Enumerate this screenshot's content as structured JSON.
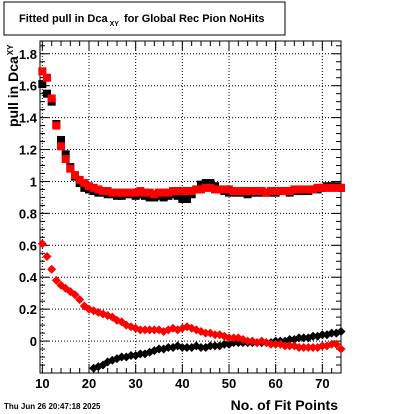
{
  "chart_data": {
    "type": "scatter",
    "title": {
      "main": "Fitted pull in Dca",
      "sub": "XY",
      "rest": "for Global Rec Pion NoHits"
    },
    "xlabel": "No. of Fit Points",
    "ylabel": {
      "main": "pull in Dca",
      "sub": "XY"
    },
    "xlim": [
      9.5,
      74
    ],
    "ylim": [
      -0.2,
      1.88
    ],
    "xticks": [
      10,
      20,
      30,
      40,
      50,
      60,
      70
    ],
    "yticks": [
      0,
      0.2,
      0.4,
      0.6,
      0.8,
      1,
      1.2,
      1.4,
      1.6,
      1.8
    ],
    "ytick_labels": [
      "0",
      "0.2",
      "0.4",
      "0.6",
      "0.8",
      "1",
      "1.2",
      "1.4",
      "1.6",
      "1.8"
    ],
    "grid": true,
    "series": [
      {
        "color": "#000000",
        "marker": "square",
        "x": [
          10,
          11,
          12,
          13,
          14,
          15,
          16,
          17,
          18,
          19,
          20,
          21,
          22,
          23,
          24,
          25,
          26,
          27,
          28,
          29,
          30,
          31,
          32,
          33,
          34,
          35,
          36,
          37,
          38,
          39,
          40,
          41,
          42,
          43,
          44,
          45,
          46,
          47,
          48,
          49,
          50,
          51,
          52,
          53,
          54,
          55,
          56,
          57,
          58,
          59,
          60,
          61,
          62,
          63,
          64,
          65,
          66,
          67,
          68,
          69,
          70,
          71,
          72,
          73,
          74
        ],
        "y": [
          1.61,
          1.55,
          1.5,
          1.36,
          1.26,
          1.17,
          1.09,
          1.03,
          0.99,
          0.96,
          0.95,
          0.94,
          0.93,
          0.93,
          0.92,
          0.92,
          0.91,
          0.91,
          0.92,
          0.92,
          0.91,
          0.92,
          0.91,
          0.9,
          0.9,
          0.91,
          0.9,
          0.91,
          0.92,
          0.91,
          0.89,
          0.89,
          0.92,
          0.95,
          0.98,
          0.99,
          0.99,
          0.97,
          0.95,
          0.94,
          0.93,
          0.93,
          0.93,
          0.93,
          0.92,
          0.93,
          0.93,
          0.93,
          0.93,
          0.93,
          0.93,
          0.94,
          0.94,
          0.93,
          0.94,
          0.94,
          0.94,
          0.94,
          0.95,
          0.95,
          0.96,
          0.97,
          0.97,
          0.97,
          0.96
        ]
      },
      {
        "color": "#ff0000",
        "marker": "square",
        "x": [
          10,
          11,
          12,
          13,
          14,
          15,
          16,
          17,
          18,
          19,
          20,
          21,
          22,
          23,
          24,
          25,
          26,
          27,
          28,
          29,
          30,
          31,
          32,
          33,
          34,
          35,
          36,
          37,
          38,
          39,
          40,
          41,
          42,
          43,
          44,
          45,
          46,
          47,
          48,
          49,
          50,
          51,
          52,
          53,
          54,
          55,
          56,
          57,
          58,
          59,
          60,
          61,
          62,
          63,
          64,
          65,
          66,
          67,
          68,
          69,
          70,
          71,
          72,
          73,
          74
        ],
        "y": [
          1.69,
          1.65,
          1.52,
          1.35,
          1.22,
          1.14,
          1.08,
          1.04,
          1.01,
          0.99,
          0.97,
          0.96,
          0.95,
          0.94,
          0.94,
          0.93,
          0.93,
          0.93,
          0.93,
          0.93,
          0.93,
          0.94,
          0.93,
          0.93,
          0.92,
          0.93,
          0.93,
          0.93,
          0.94,
          0.94,
          0.94,
          0.94,
          0.94,
          0.95,
          0.95,
          0.96,
          0.96,
          0.95,
          0.95,
          0.95,
          0.95,
          0.94,
          0.94,
          0.94,
          0.94,
          0.94,
          0.94,
          0.94,
          0.93,
          0.94,
          0.94,
          0.94,
          0.94,
          0.94,
          0.95,
          0.95,
          0.95,
          0.95,
          0.95,
          0.96,
          0.96,
          0.96,
          0.96,
          0.96,
          0.96
        ]
      },
      {
        "color": "#000000",
        "marker": "diamond",
        "x": [
          21,
          22,
          23,
          24,
          25,
          26,
          27,
          28,
          29,
          30,
          31,
          32,
          33,
          34,
          35,
          36,
          37,
          38,
          39,
          40,
          41,
          42,
          43,
          44,
          45,
          46,
          47,
          48,
          49,
          50,
          51,
          52,
          53,
          54,
          55,
          56,
          57,
          58,
          59,
          60,
          61,
          62,
          63,
          64,
          65,
          66,
          67,
          68,
          69,
          70,
          71,
          72,
          73,
          74
        ],
        "y": [
          -0.17,
          -0.16,
          -0.15,
          -0.13,
          -0.12,
          -0.11,
          -0.1,
          -0.1,
          -0.09,
          -0.09,
          -0.08,
          -0.08,
          -0.07,
          -0.06,
          -0.05,
          -0.05,
          -0.04,
          -0.04,
          -0.03,
          -0.04,
          -0.04,
          -0.04,
          -0.03,
          -0.04,
          -0.04,
          -0.03,
          -0.03,
          -0.03,
          -0.02,
          -0.02,
          -0.01,
          -0.01,
          -0.01,
          -0.01,
          -0.01,
          -0.01,
          -0.01,
          -0.01,
          -0.01,
          0.0,
          0.0,
          0.0,
          0.01,
          0.01,
          0.02,
          0.02,
          0.02,
          0.03,
          0.03,
          0.04,
          0.04,
          0.05,
          0.05,
          0.06
        ]
      },
      {
        "color": "#ff0000",
        "marker": "diamond",
        "x": [
          10,
          11,
          12,
          13,
          14,
          15,
          16,
          17,
          18,
          19,
          20,
          21,
          22,
          23,
          24,
          25,
          26,
          27,
          28,
          29,
          30,
          31,
          32,
          33,
          34,
          35,
          36,
          37,
          38,
          39,
          40,
          41,
          42,
          43,
          44,
          45,
          46,
          47,
          48,
          49,
          50,
          51,
          52,
          53,
          54,
          55,
          56,
          57,
          58,
          59,
          60,
          61,
          62,
          63,
          64,
          65,
          66,
          67,
          68,
          69,
          70,
          71,
          72,
          73,
          74
        ],
        "y": [
          0.61,
          0.53,
          0.45,
          0.38,
          0.35,
          0.33,
          0.31,
          0.29,
          0.26,
          0.22,
          0.2,
          0.19,
          0.18,
          0.17,
          0.16,
          0.15,
          0.13,
          0.12,
          0.1,
          0.09,
          0.08,
          0.07,
          0.07,
          0.07,
          0.07,
          0.07,
          0.06,
          0.07,
          0.08,
          0.07,
          0.08,
          0.09,
          0.08,
          0.07,
          0.06,
          0.05,
          0.05,
          0.04,
          0.04,
          0.03,
          0.02,
          0.02,
          0.02,
          0.01,
          0.0,
          0.0,
          -0.01,
          0.0,
          -0.01,
          -0.02,
          -0.02,
          -0.02,
          -0.03,
          -0.03,
          -0.03,
          -0.04,
          -0.04,
          -0.04,
          -0.04,
          -0.04,
          -0.03,
          -0.03,
          -0.02,
          -0.02,
          -0.05
        ]
      }
    ]
  },
  "footer": {
    "timestamp": "Thu Jun 26 20:47:18 2025"
  }
}
